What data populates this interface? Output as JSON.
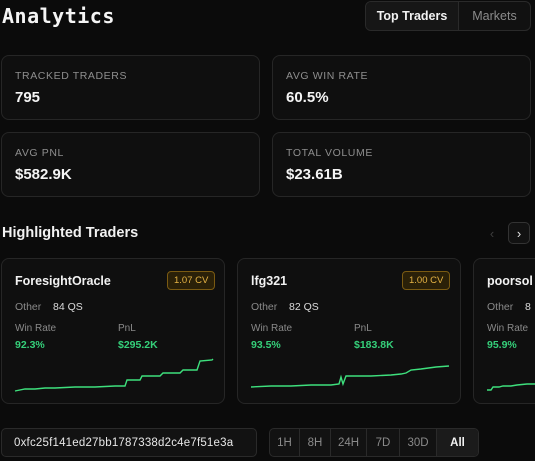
{
  "header": {
    "title": "Analytics",
    "tabs": [
      {
        "label": "Top Traders",
        "active": true
      },
      {
        "label": "Markets",
        "active": false
      }
    ]
  },
  "stats": [
    {
      "label": "TRACKED TRADERS",
      "value": "795"
    },
    {
      "label": "AVG WIN RATE",
      "value": "60.5%"
    },
    {
      "label": "AVG PNL",
      "value": "$582.9K"
    },
    {
      "label": "TOTAL VOLUME",
      "value": "$23.61B"
    }
  ],
  "highlighted": {
    "title": "Highlighted Traders",
    "prev_icon": "chevron-left-icon",
    "next_icon": "chevron-right-icon",
    "prev_glyph": "‹",
    "next_glyph": "›",
    "traders": [
      {
        "name": "ForesightOracle",
        "cv": "1.07 CV",
        "category": "Other",
        "qs": "84 QS",
        "win_rate_label": "Win Rate",
        "win_rate": "92.3%",
        "pnl_label": "PnL",
        "pnl": "$295.2K"
      },
      {
        "name": "lfg321",
        "cv": "1.00 CV",
        "category": "Other",
        "qs": "82 QS",
        "win_rate_label": "Win Rate",
        "win_rate": "93.5%",
        "pnl_label": "PnL",
        "pnl": "$183.8K"
      },
      {
        "name": "poorsol",
        "category": "Other",
        "qs": "8",
        "win_rate_label": "Win Rate",
        "win_rate": "95.9%"
      }
    ]
  },
  "footer": {
    "address": "0xfc25f141ed27bb1787338d2c4e7f51e3a",
    "ranges": [
      {
        "label": "1H",
        "active": false
      },
      {
        "label": "8H",
        "active": false
      },
      {
        "label": "24H",
        "active": false
      },
      {
        "label": "7D",
        "active": false
      },
      {
        "label": "30D",
        "active": false
      },
      {
        "label": "All",
        "active": true
      }
    ]
  },
  "colors": {
    "positive": "#35d07a",
    "badge_text": "#e7b445",
    "spark_line": "#3ee07d"
  }
}
